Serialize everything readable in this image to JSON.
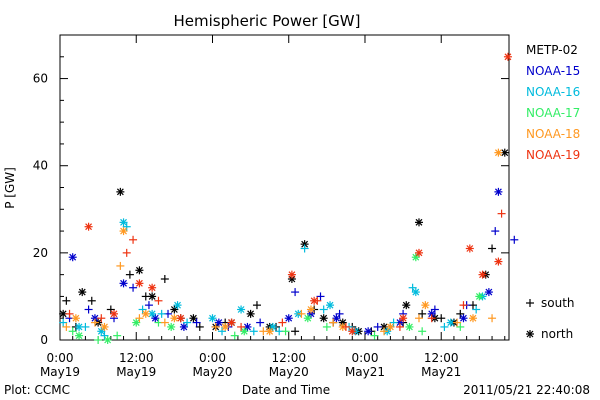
{
  "chart_data": {
    "type": "scatter",
    "title": "Hemispheric Power [GW]",
    "xlabel": "Date and Time",
    "ylabel": "P [GW]",
    "xlim": [
      "2011-05-19T00:00",
      "2011-05-21T22:40"
    ],
    "ylim": [
      0,
      70
    ],
    "yticks": [
      0,
      20,
      40,
      60
    ],
    "xticks": [
      {
        "time": "2011-05-19T00:00",
        "label1": "0:00",
        "label2": "May19"
      },
      {
        "time": "2011-05-19T12:00",
        "label1": "12:00",
        "label2": "May19"
      },
      {
        "time": "2011-05-20T00:00",
        "label1": "0:00",
        "label2": "May20"
      },
      {
        "time": "2011-05-20T12:00",
        "label1": "12:00",
        "label2": "May20"
      },
      {
        "time": "2011-05-21T00:00",
        "label1": "0:00",
        "label2": "May21"
      },
      {
        "time": "2011-05-21T12:00",
        "label1": "12:00",
        "label2": "May21"
      }
    ],
    "grid": false,
    "legend_position": "right",
    "marker_legend": [
      {
        "symbol": "+",
        "label": "south"
      },
      {
        "symbol": "*",
        "label": "north"
      }
    ],
    "series": [
      {
        "name": "METP-02",
        "color": "#000000",
        "south": [
          [
            "2011-05-19T01:00",
            9
          ],
          [
            "2011-05-19T02:30",
            3
          ],
          [
            "2011-05-19T05:00",
            9
          ],
          [
            "2011-05-19T08:00",
            7
          ],
          [
            "2011-05-19T11:00",
            15
          ],
          [
            "2011-05-19T13:30",
            10
          ],
          [
            "2011-05-19T16:30",
            14
          ],
          [
            "2011-05-19T19:00",
            5
          ],
          [
            "2011-05-19T22:00",
            3
          ],
          [
            "2011-05-20T02:00",
            4
          ],
          [
            "2011-05-20T07:00",
            8
          ],
          [
            "2011-05-20T10:00",
            3
          ],
          [
            "2011-05-20T13:00",
            2
          ],
          [
            "2011-05-20T16:00",
            7
          ],
          [
            "2011-05-20T19:00",
            4
          ],
          [
            "2011-05-20T22:00",
            3
          ],
          [
            "2011-05-21T01:00",
            2
          ],
          [
            "2011-05-21T04:00",
            3
          ],
          [
            "2011-05-21T06:00",
            4
          ],
          [
            "2011-05-21T09:00",
            6
          ],
          [
            "2011-05-21T12:00",
            5
          ],
          [
            "2011-05-21T15:00",
            6
          ],
          [
            "2011-05-21T17:00",
            8
          ],
          [
            "2011-05-21T20:00",
            21
          ]
        ],
        "north": [
          [
            "2011-05-19T00:30",
            6
          ],
          [
            "2011-05-19T03:30",
            11
          ],
          [
            "2011-05-19T06:00",
            4
          ],
          [
            "2011-05-19T09:30",
            34
          ],
          [
            "2011-05-19T12:30",
            16
          ],
          [
            "2011-05-19T14:30",
            10
          ],
          [
            "2011-05-19T18:00",
            7
          ],
          [
            "2011-05-19T21:00",
            5
          ],
          [
            "2011-05-20T00:30",
            3
          ],
          [
            "2011-05-20T03:00",
            4
          ],
          [
            "2011-05-20T06:00",
            6
          ],
          [
            "2011-05-20T09:00",
            3
          ],
          [
            "2011-05-20T12:30",
            14
          ],
          [
            "2011-05-20T14:30",
            22
          ],
          [
            "2011-05-20T17:30",
            5
          ],
          [
            "2011-05-20T20:30",
            4
          ],
          [
            "2011-05-20T23:00",
            2
          ],
          [
            "2011-05-21T03:00",
            3
          ],
          [
            "2011-05-21T06:30",
            8
          ],
          [
            "2011-05-21T08:30",
            27
          ],
          [
            "2011-05-21T11:00",
            5
          ],
          [
            "2011-05-21T14:00",
            4
          ],
          [
            "2011-05-21T19:00",
            15
          ],
          [
            "2011-05-21T22:00",
            43
          ]
        ]
      },
      {
        "name": "NOAA-15",
        "color": "#0000cc",
        "south": [
          [
            "2011-05-19T01:30",
            5
          ],
          [
            "2011-05-19T04:30",
            7
          ],
          [
            "2011-05-19T08:30",
            5
          ],
          [
            "2011-05-19T11:30",
            12
          ],
          [
            "2011-05-19T14:00",
            8
          ],
          [
            "2011-05-19T17:00",
            6
          ],
          [
            "2011-05-19T21:30",
            4
          ],
          [
            "2011-05-20T02:30",
            3
          ],
          [
            "2011-05-20T07:30",
            4
          ],
          [
            "2011-05-20T13:00",
            11
          ],
          [
            "2011-05-20T17:00",
            10
          ],
          [
            "2011-05-20T20:00",
            6
          ],
          [
            "2011-05-21T02:00",
            3
          ],
          [
            "2011-05-21T06:00",
            6
          ],
          [
            "2011-05-21T11:00",
            7
          ],
          [
            "2011-05-21T16:00",
            8
          ],
          [
            "2011-05-21T20:30",
            25
          ],
          [
            "2011-05-21T23:30",
            23
          ]
        ],
        "north": [
          [
            "2011-05-19T02:00",
            19
          ],
          [
            "2011-05-19T05:30",
            5
          ],
          [
            "2011-05-19T10:00",
            13
          ],
          [
            "2011-05-19T15:00",
            5
          ],
          [
            "2011-05-19T19:30",
            3
          ],
          [
            "2011-05-20T01:00",
            4
          ],
          [
            "2011-05-20T05:30",
            3
          ],
          [
            "2011-05-20T12:00",
            5
          ],
          [
            "2011-05-20T15:30",
            6
          ],
          [
            "2011-05-20T19:30",
            5
          ],
          [
            "2011-05-21T00:30",
            2
          ],
          [
            "2011-05-21T05:30",
            4
          ],
          [
            "2011-05-21T10:30",
            6
          ],
          [
            "2011-05-21T15:30",
            5
          ],
          [
            "2011-05-21T19:30",
            11
          ],
          [
            "2011-05-21T21:00",
            34
          ]
        ]
      },
      {
        "name": "NOAA-16",
        "color": "#00bbdd",
        "south": [
          [
            "2011-05-19T00:30",
            4
          ],
          [
            "2011-05-19T04:00",
            3
          ],
          [
            "2011-05-19T07:00",
            1
          ],
          [
            "2011-05-19T10:30",
            26
          ],
          [
            "2011-05-19T13:00",
            7
          ],
          [
            "2011-05-19T16:00",
            6
          ],
          [
            "2011-05-19T20:00",
            4
          ],
          [
            "2011-05-20T01:30",
            2
          ],
          [
            "2011-05-20T06:30",
            2
          ],
          [
            "2011-05-20T10:30",
            2
          ],
          [
            "2011-05-20T14:30",
            21
          ],
          [
            "2011-05-20T17:30",
            7
          ],
          [
            "2011-05-20T21:30",
            3
          ],
          [
            "2011-05-21T04:30",
            4
          ],
          [
            "2011-05-21T07:30",
            12
          ],
          [
            "2011-05-21T12:30",
            3
          ],
          [
            "2011-05-21T17:30",
            7
          ]
        ],
        "north": [
          [
            "2011-05-19T03:00",
            3
          ],
          [
            "2011-05-19T06:30",
            2
          ],
          [
            "2011-05-19T10:00",
            27
          ],
          [
            "2011-05-19T14:30",
            6
          ],
          [
            "2011-05-19T18:30",
            8
          ],
          [
            "2011-05-20T00:00",
            5
          ],
          [
            "2011-05-20T04:30",
            7
          ],
          [
            "2011-05-20T09:30",
            3
          ],
          [
            "2011-05-20T13:30",
            6
          ],
          [
            "2011-05-20T18:30",
            8
          ],
          [
            "2011-05-20T22:30",
            2
          ],
          [
            "2011-05-21T03:30",
            2
          ],
          [
            "2011-05-21T08:00",
            11
          ],
          [
            "2011-05-21T13:30",
            4
          ],
          [
            "2011-05-21T18:30",
            10
          ]
        ]
      },
      {
        "name": "NOAA-17",
        "color": "#33ee66",
        "south": [
          [
            "2011-05-19T02:00",
            2
          ],
          [
            "2011-05-19T06:00",
            0
          ],
          [
            "2011-05-19T09:00",
            1
          ],
          [
            "2011-05-19T15:30",
            4
          ],
          [
            "2011-05-20T03:30",
            1
          ],
          [
            "2011-05-20T11:30",
            2
          ],
          [
            "2011-05-20T18:00",
            3
          ],
          [
            "2011-05-21T01:30",
            1
          ],
          [
            "2011-05-21T09:00",
            2
          ],
          [
            "2011-05-21T15:00",
            3
          ]
        ],
        "north": [
          [
            "2011-05-19T03:00",
            1
          ],
          [
            "2011-05-19T07:30",
            0
          ],
          [
            "2011-05-19T12:00",
            4
          ],
          [
            "2011-05-19T17:30",
            3
          ],
          [
            "2011-05-20T05:00",
            2
          ],
          [
            "2011-05-20T15:00",
            5
          ],
          [
            "2011-05-21T07:00",
            3
          ],
          [
            "2011-05-21T08:00",
            19
          ],
          [
            "2011-05-21T18:00",
            10
          ]
        ]
      },
      {
        "name": "NOAA-18",
        "color": "#ff9922",
        "south": [
          [
            "2011-05-19T01:00",
            3
          ],
          [
            "2011-05-19T05:30",
            4
          ],
          [
            "2011-05-19T09:30",
            17
          ],
          [
            "2011-05-19T12:30",
            5
          ],
          [
            "2011-05-19T16:30",
            4
          ],
          [
            "2011-05-20T00:30",
            3
          ],
          [
            "2011-05-20T08:00",
            2
          ],
          [
            "2011-05-20T14:00",
            6
          ],
          [
            "2011-05-20T19:00",
            4
          ],
          [
            "2011-05-21T03:00",
            2
          ],
          [
            "2011-05-21T08:30",
            5
          ],
          [
            "2011-05-21T14:30",
            4
          ],
          [
            "2011-05-21T20:00",
            5
          ]
        ],
        "north": [
          [
            "2011-05-19T02:30",
            5
          ],
          [
            "2011-05-19T07:00",
            3
          ],
          [
            "2011-05-19T10:00",
            25
          ],
          [
            "2011-05-19T13:30",
            6
          ],
          [
            "2011-05-19T18:00",
            5
          ],
          [
            "2011-05-20T02:00",
            3
          ],
          [
            "2011-05-20T09:00",
            2
          ],
          [
            "2011-05-20T15:30",
            7
          ],
          [
            "2011-05-20T20:30",
            3
          ],
          [
            "2011-05-21T04:00",
            3
          ],
          [
            "2011-05-21T09:30",
            8
          ],
          [
            "2011-05-21T17:00",
            5
          ],
          [
            "2011-05-21T21:00",
            43
          ]
        ]
      },
      {
        "name": "NOAA-19",
        "color": "#ee3311",
        "south": [
          [
            "2011-05-19T01:30",
            6
          ],
          [
            "2011-05-19T06:30",
            5
          ],
          [
            "2011-05-19T10:30",
            20
          ],
          [
            "2011-05-19T11:30",
            23
          ],
          [
            "2011-05-19T15:30",
            9
          ],
          [
            "2011-05-20T04:30",
            3
          ],
          [
            "2011-05-20T11:00",
            4
          ],
          [
            "2011-05-20T16:30",
            9
          ],
          [
            "2011-05-20T21:00",
            3
          ],
          [
            "2011-05-21T05:30",
            3
          ],
          [
            "2011-05-21T10:30",
            5
          ],
          [
            "2011-05-21T15:30",
            8
          ],
          [
            "2011-05-21T21:30",
            29
          ]
        ],
        "north": [
          [
            "2011-05-19T04:30",
            26
          ],
          [
            "2011-05-19T08:30",
            6
          ],
          [
            "2011-05-19T12:30",
            13
          ],
          [
            "2011-05-19T14:30",
            12
          ],
          [
            "2011-05-19T19:00",
            5
          ],
          [
            "2011-05-20T03:00",
            4
          ],
          [
            "2011-05-20T12:30",
            15
          ],
          [
            "2011-05-20T16:00",
            9
          ],
          [
            "2011-05-20T22:00",
            2
          ],
          [
            "2011-05-21T06:00",
            5
          ],
          [
            "2011-05-21T08:30",
            20
          ],
          [
            "2011-05-21T16:30",
            21
          ],
          [
            "2011-05-21T18:30",
            15
          ],
          [
            "2011-05-21T21:00",
            18
          ],
          [
            "2011-05-21T22:30",
            65
          ]
        ]
      }
    ]
  },
  "footer": {
    "plot_credit": "Plot: CCMC",
    "timestamp": "2011/05/21 22:40:08"
  }
}
